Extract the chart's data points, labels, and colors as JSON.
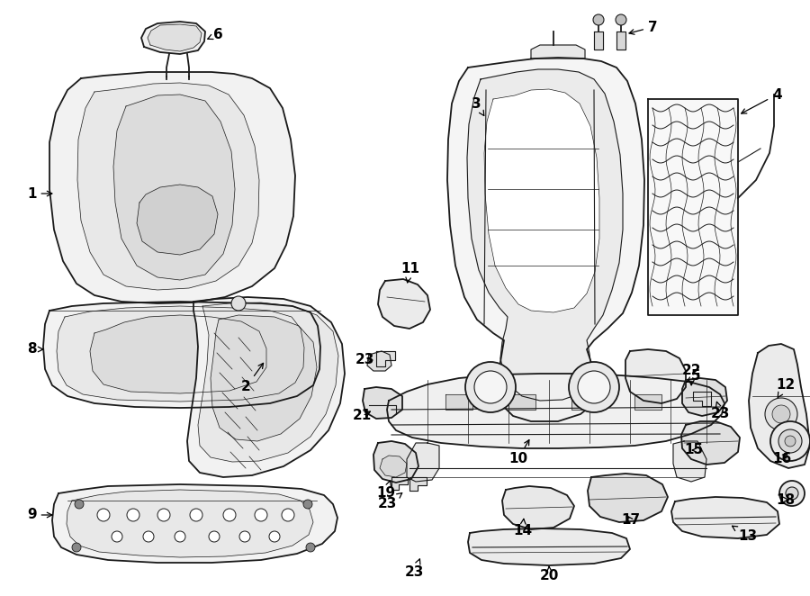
{
  "background_color": "#ffffff",
  "line_color": "#1a1a1a",
  "figsize": [
    9.0,
    6.62
  ],
  "dpi": 100,
  "label_fontsize": 11,
  "arrow_lw": 0.9
}
